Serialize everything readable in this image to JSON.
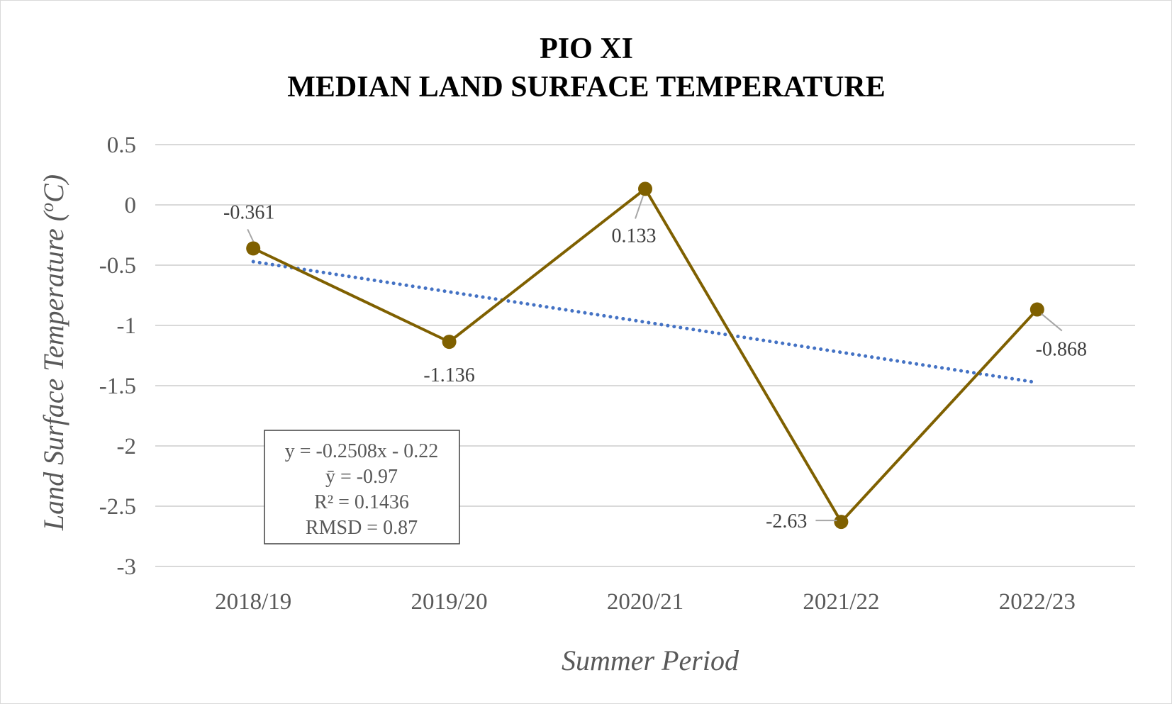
{
  "chart_data": {
    "type": "line",
    "title": [
      "PIO XI",
      "MEDIAN LAND SURFACE TEMPERATURE"
    ],
    "xlabel": "Summer Period",
    "ylabel": "Land Surface Temperature (",
    "ylabel_sup": "o",
    "ylabel_suffix": "C)",
    "categories": [
      "2018/19",
      "2019/20",
      "2020/21",
      "2021/22",
      "2022/23"
    ],
    "series": [
      {
        "values": [
          -0.361,
          -1.136,
          0.133,
          -2.63,
          -0.868
        ],
        "labels": [
          "-0.361",
          "-1.136",
          "0.133",
          "-2.63",
          "-0.868"
        ],
        "color": "#7f6000"
      }
    ],
    "trendline": {
      "slope": -0.2508,
      "intercept": -0.22,
      "color": "#4472c4",
      "style": "dotted"
    },
    "stats": [
      "y = -0.2508x - 0.22",
      "ȳ = -0.97",
      "R² = 0.1436",
      "RMSD = 0.87"
    ],
    "ylim": [
      -3,
      0.5
    ],
    "yticks": [
      0.5,
      0,
      -0.5,
      -1,
      -1.5,
      -2,
      -2.5,
      -3
    ],
    "grid": true,
    "legend": "none"
  }
}
